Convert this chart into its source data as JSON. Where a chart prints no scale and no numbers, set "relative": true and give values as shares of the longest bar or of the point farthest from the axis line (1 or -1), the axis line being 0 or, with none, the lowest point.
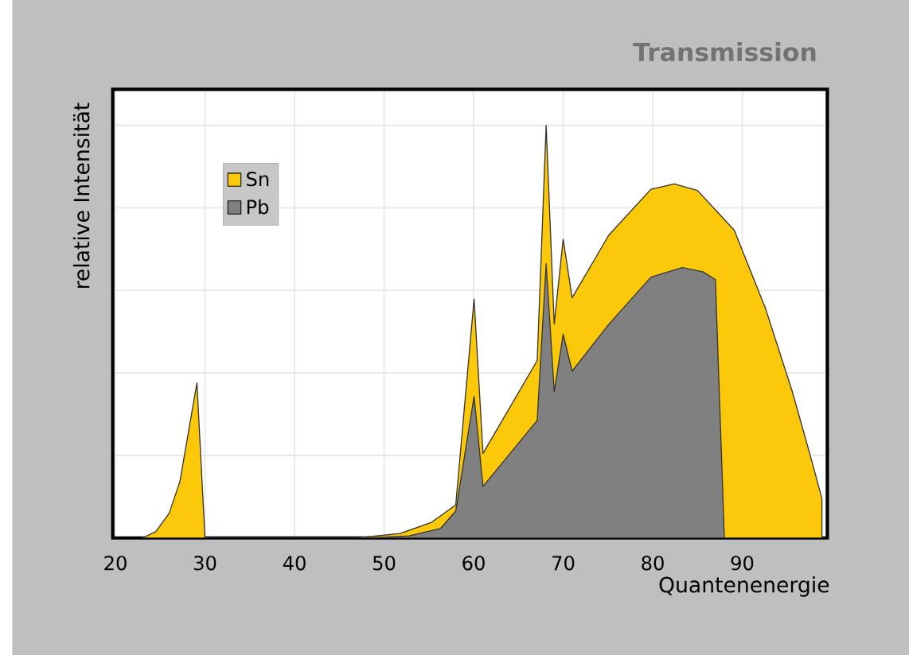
{
  "chart_data": {
    "type": "area",
    "title": "Transmission",
    "xlabel": "Quantenenergie",
    "ylabel": "relative Intensität",
    "relative": true,
    "xlim": [
      19.7,
      99.5
    ],
    "xticks": [
      20,
      30,
      40,
      50,
      60,
      70,
      80,
      90
    ],
    "grid": true,
    "legend": "top left",
    "series": [
      {
        "name": "Sn",
        "color": "#fcc80a",
        "x": [
          23,
          24.5,
          26,
          27.2,
          29.1,
          30,
          47,
          51.8,
          55.3,
          58,
          60.05,
          61.05,
          67.1,
          68.1,
          69.0,
          70.0,
          71.0,
          75.1,
          79.8,
          82.4,
          85.0,
          89.1,
          92.6,
          95.6,
          97.9,
          98.9,
          98.9
        ],
        "values": [
          0,
          0.015,
          0.06,
          0.137,
          0.376,
          0,
          0,
          0.011,
          0.038,
          0.08,
          0.579,
          0.205,
          0.43,
          1.0,
          0.518,
          0.724,
          0.582,
          0.734,
          0.845,
          0.858,
          0.842,
          0.746,
          0.556,
          0.354,
          0.176,
          0.095,
          0
        ]
      },
      {
        "name": "Pb",
        "color": "#808080",
        "x": [
          48,
          52.8,
          56.3,
          58,
          60.05,
          61.05,
          67.1,
          68.1,
          69.0,
          70.0,
          71.0,
          75.1,
          79.8,
          83.3,
          85.6,
          87.0,
          88.0
        ],
        "values": [
          0,
          0.005,
          0.023,
          0.065,
          0.343,
          0.125,
          0.285,
          0.665,
          0.354,
          0.494,
          0.404,
          0.518,
          0.632,
          0.655,
          0.645,
          0.626,
          0
        ]
      }
    ]
  }
}
